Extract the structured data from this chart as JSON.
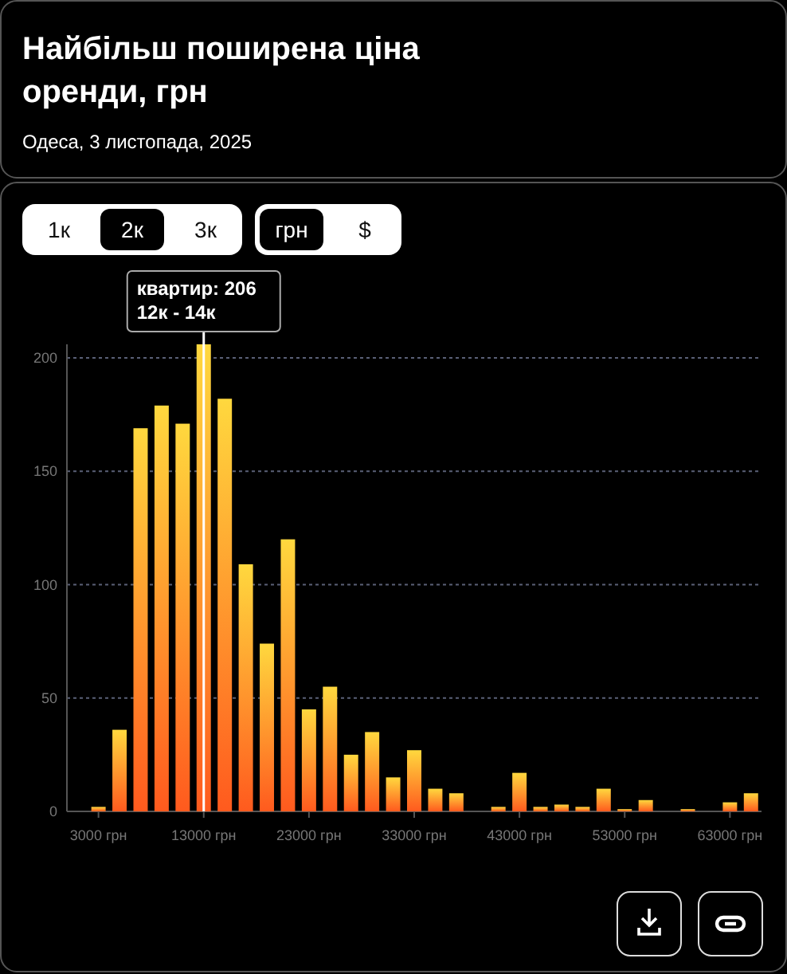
{
  "chart_data": {
    "type": "histogram",
    "title": "Найбільш поширена ціна оренди, грн",
    "subtitle": "Одеса, 3 листопада, 2025",
    "bins": [
      2000,
      4000,
      6000,
      8000,
      10000,
      12000,
      14000,
      16000,
      18000,
      20000,
      22000,
      24000,
      26000,
      28000,
      30000,
      32000,
      34000,
      36000,
      38000,
      40000,
      42000,
      44000,
      46000,
      48000,
      50000,
      52000,
      54000,
      56000,
      58000,
      60000,
      62000,
      64000,
      66000
    ],
    "values": [
      2,
      36,
      169,
      179,
      171,
      206,
      182,
      109,
      74,
      120,
      45,
      55,
      25,
      35,
      15,
      27,
      10,
      8,
      0,
      2,
      17,
      2,
      3,
      2,
      10,
      1,
      5,
      0,
      1,
      0,
      4,
      8
    ],
    "color": "#ff5a1e",
    "xlim": [
      0,
      66000
    ],
    "xticks": [
      {
        "value": 3000,
        "label": "3000 грн"
      },
      {
        "value": 13000,
        "label": "13000 грн"
      },
      {
        "value": 23000,
        "label": "23000 грн"
      },
      {
        "value": 33000,
        "label": "33000 грн"
      },
      {
        "value": 43000,
        "label": "43000 грн"
      },
      {
        "value": 53000,
        "label": "53000 грн"
      },
      {
        "value": 63000,
        "label": "63000 грн"
      }
    ],
    "ylim": [
      0,
      206
    ],
    "yticks": [
      0,
      50,
      100,
      150,
      200
    ],
    "grid": "y",
    "ref_lines": [
      {
        "axis": "x",
        "value": 13000,
        "color": "#ffffff"
      }
    ],
    "annotations": [
      {
        "text": "квартир: 206\n12к - 14к",
        "x": 13000,
        "y": 206
      },
      "1к",
      "2к",
      "3к",
      "грн",
      "$"
    ]
  }
}
